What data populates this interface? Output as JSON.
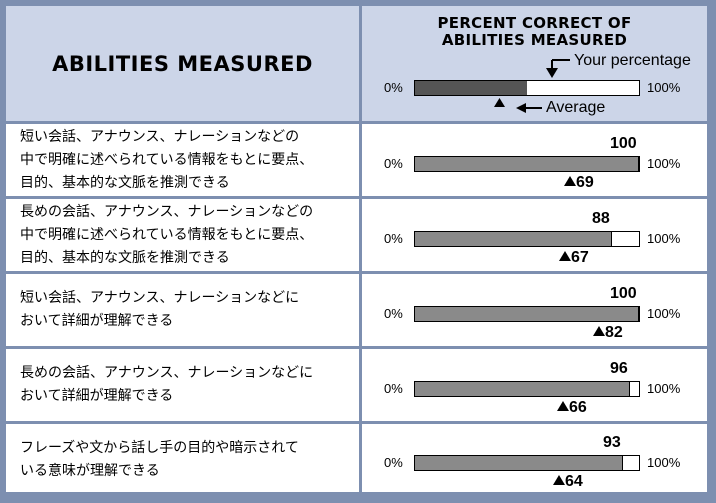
{
  "header": {
    "abilities_label": "ABILITIES MEASURED",
    "percent_title_line1": "PERCENT CORRECT OF",
    "percent_title_line2": "ABILITIES MEASURED",
    "legend": {
      "scale_min": "0%",
      "scale_max": "100%",
      "your_percentage": "Your percentage",
      "average": "Average"
    }
  },
  "rows": [
    {
      "ability": "短い会話、アナウンス、ナレーションなどの\n中で明確に述べられている情報をもとに要点、\n目的、基本的な文脈を推測できる",
      "your": 100,
      "average": 69
    },
    {
      "ability": "長めの会話、アナウンス、ナレーションなどの\n中で明確に述べられている情報をもとに要点、\n目的、基本的な文脈を推測できる",
      "your": 88,
      "average": 67
    },
    {
      "ability": "短い会話、アナウンス、ナレーションなどに\nおいて詳細が理解できる",
      "your": 100,
      "average": 82
    },
    {
      "ability": "長めの会話、アナウンス、ナレーションなどに\nおいて詳細が理解できる",
      "your": 96,
      "average": 66
    },
    {
      "ability": "フレーズや文から話し手の目的や暗示されて\nいる意味が理解できる",
      "your": 93,
      "average": 64
    }
  ],
  "colors": {
    "frame": "#7d8fb0",
    "header_bg": "#ccd5e8",
    "bar_fill": "#8a8a8a",
    "legend_fill": "#555555"
  }
}
